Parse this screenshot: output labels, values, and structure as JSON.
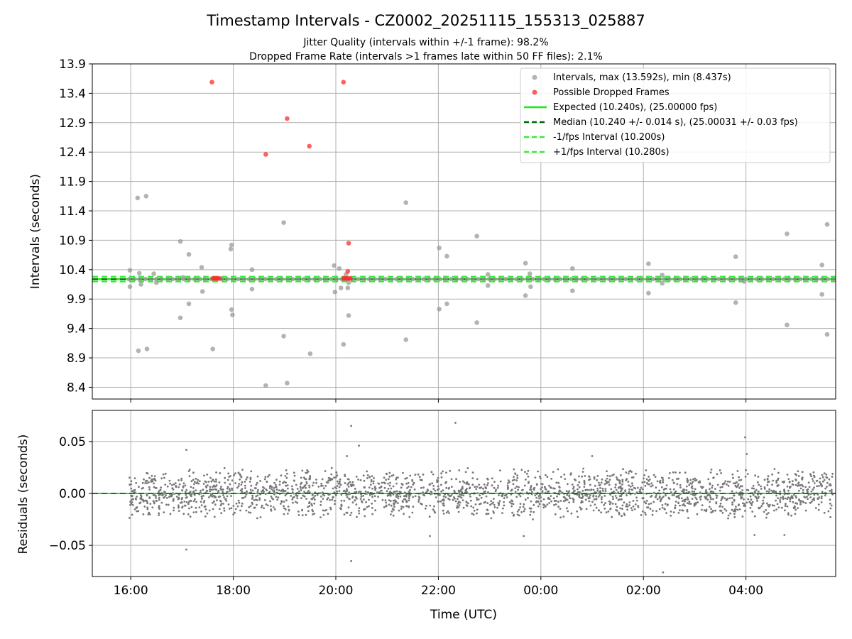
{
  "figure": {
    "title": "Timestamp Intervals - CZ0002_20251115_155313_025887",
    "subtitle_1": "Jitter Quality (intervals within +/-1 frame): 98.2%",
    "subtitle_2": "Dropped Frame Rate (intervals >1 frames late within 50 FF files): 2.1%"
  },
  "colors": {
    "intervals": "#999999",
    "dropped": "#ff2a2a",
    "expected": "#11ee11",
    "median": "#006400",
    "fps_bounds": "#33ee33",
    "residuals": "#777777",
    "grid": "#b0b0b0"
  },
  "chart_data": [
    {
      "type": "scatter",
      "name": "intervals",
      "ylabel": "Intervals (seconds)",
      "xlim": [
        "15:15",
        "05:45"
      ],
      "ylim": [
        8.2,
        13.9
      ],
      "yticks": [
        "8.4",
        "8.9",
        "9.4",
        "9.9",
        "10.4",
        "10.9",
        "11.4",
        "11.9",
        "12.4",
        "12.9",
        "13.4",
        "13.9"
      ],
      "grid": true,
      "legend_position": "top-right",
      "legend": [
        "Intervals, max (13.592s), min (8.437s)",
        "Possible Dropped Frames",
        "Expected (10.240s), (25.00000 fps)",
        "Median (10.240 +/- 0.014 s), (25.00031 +/- 0.03 fps)",
        "-1/fps Interval (10.200s)",
        "+1/fps Interval (10.280s)"
      ],
      "lines": {
        "expected": 10.24,
        "median": 10.24,
        "minus_fps": 10.2,
        "plus_fps": 10.28
      },
      "intervals_outliers": [
        [
          "15:59",
          10.39
        ],
        [
          "15:59",
          10.11
        ],
        [
          "16:08",
          11.62
        ],
        [
          "16:09",
          9.02
        ],
        [
          "16:10",
          10.34
        ],
        [
          "16:12",
          10.15
        ],
        [
          "16:18",
          11.65
        ],
        [
          "16:19",
          9.05
        ],
        [
          "16:27",
          10.33
        ],
        [
          "16:30",
          10.18
        ],
        [
          "16:58",
          10.88
        ],
        [
          "16:58",
          9.58
        ],
        [
          "17:01",
          10.27
        ],
        [
          "17:08",
          10.66
        ],
        [
          "17:08",
          9.82
        ],
        [
          "17:23",
          10.44
        ],
        [
          "17:24",
          10.03
        ],
        [
          "17:36",
          9.05
        ],
        [
          "17:57",
          10.75
        ],
        [
          "17:58",
          10.82
        ],
        [
          "17:58",
          9.72
        ],
        [
          "17:59",
          9.63
        ],
        [
          "18:22",
          10.07
        ],
        [
          "18:22",
          10.4
        ],
        [
          "18:38",
          8.43
        ],
        [
          "18:59",
          11.2
        ],
        [
          "18:59",
          9.27
        ],
        [
          "19:03",
          8.47
        ],
        [
          "19:30",
          8.97
        ],
        [
          "19:58",
          10.47
        ],
        [
          "19:59",
          10.02
        ],
        [
          "20:04",
          10.42
        ],
        [
          "20:06",
          10.09
        ],
        [
          "20:09",
          9.13
        ],
        [
          "20:12",
          10.32
        ],
        [
          "20:14",
          10.09
        ],
        [
          "20:15",
          10.18
        ],
        [
          "20:15",
          9.62
        ],
        [
          "21:22",
          11.54
        ],
        [
          "21:22",
          9.21
        ],
        [
          "22:01",
          10.77
        ],
        [
          "22:01",
          9.73
        ],
        [
          "22:10",
          10.63
        ],
        [
          "22:10",
          9.82
        ],
        [
          "22:45",
          10.97
        ],
        [
          "22:45",
          9.5
        ],
        [
          "22:58",
          10.32
        ],
        [
          "22:58",
          10.13
        ],
        [
          "23:42",
          10.51
        ],
        [
          "23:42",
          9.96
        ],
        [
          "23:47",
          10.33
        ],
        [
          "23:48",
          10.11
        ],
        [
          "00:37",
          10.42
        ],
        [
          "00:37",
          10.04
        ],
        [
          "02:06",
          10.5
        ],
        [
          "02:06",
          10.0
        ],
        [
          "02:22",
          10.31
        ],
        [
          "02:22",
          10.17
        ],
        [
          "03:48",
          10.62
        ],
        [
          "03:48",
          9.84
        ],
        [
          "03:58",
          10.2
        ],
        [
          "04:48",
          11.01
        ],
        [
          "04:48",
          9.46
        ],
        [
          "05:29",
          10.48
        ],
        [
          "05:29",
          9.98
        ],
        [
          "05:35",
          11.17
        ],
        [
          "05:35",
          9.3
        ]
      ],
      "dropped_frames": [
        [
          "17:35",
          13.59
        ],
        [
          "18:38",
          12.36
        ],
        [
          "19:03",
          12.97
        ],
        [
          "19:29",
          12.5
        ],
        [
          "20:09",
          13.59
        ],
        [
          "20:14",
          10.37
        ],
        [
          "20:15",
          10.85
        ],
        [
          "17:36",
          10.25
        ],
        [
          "17:38",
          10.25
        ],
        [
          "17:40",
          10.25
        ],
        [
          "17:42",
          10.25
        ],
        [
          "17:44",
          10.25
        ],
        [
          "20:09",
          10.25
        ],
        [
          "20:11",
          10.25
        ],
        [
          "20:13",
          10.25
        ],
        [
          "20:15",
          10.25
        ],
        [
          "20:17",
          10.25
        ]
      ]
    },
    {
      "type": "scatter",
      "name": "residuals",
      "ylabel": "Residuals (seconds)",
      "xlabel": "Time (UTC)",
      "xlim": [
        "15:15",
        "05:45"
      ],
      "ylim": [
        -0.08,
        0.08
      ],
      "yticks": [
        "0.05",
        "0.00",
        "−0.05"
      ],
      "xticks": [
        "16:00",
        "18:00",
        "20:00",
        "22:00",
        "00:00",
        "02:00",
        "04:00"
      ],
      "grid": true,
      "residual_band": [
        -0.03,
        0.03
      ],
      "outliers": [
        [
          "17:05",
          0.042
        ],
        [
          "17:05",
          -0.054
        ],
        [
          "20:18",
          0.065
        ],
        [
          "20:27",
          0.046
        ],
        [
          "20:13",
          0.036
        ],
        [
          "20:18",
          -0.065
        ],
        [
          "22:20",
          0.068
        ],
        [
          "23:40",
          -0.041
        ],
        [
          "21:50",
          -0.041
        ],
        [
          "01:00",
          0.036
        ],
        [
          "02:23",
          -0.076
        ],
        [
          "03:59",
          0.054
        ],
        [
          "04:01",
          0.038
        ],
        [
          "04:10",
          -0.04
        ],
        [
          "04:45",
          -0.04
        ]
      ]
    }
  ]
}
